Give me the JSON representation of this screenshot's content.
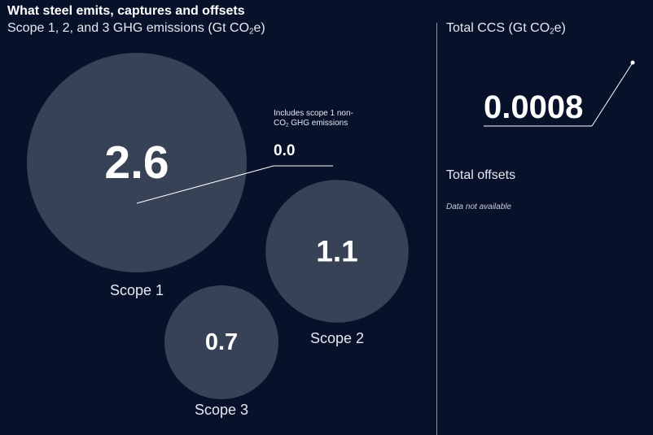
{
  "header": {
    "title": "What steel emits, captures and offsets",
    "subtitle_main": "Scope 1, 2, and 3 GHG emissions (Gt CO",
    "subtitle_sub": "2",
    "subtitle_tail": "e)"
  },
  "chart_data": {
    "type": "bubble",
    "title": "What steel emits, captures and offsets",
    "unit": "Gt CO2e",
    "categories": [
      "Scope 1",
      "Scope 2",
      "Scope 3"
    ],
    "values": [
      2.6,
      1.1,
      0.7
    ],
    "value_labels": [
      "2.6",
      "1.1",
      "0.7"
    ],
    "annotation": {
      "text_pre": "Includes scope 1 non-CO",
      "text_sub": "2",
      "text_post": " GHG emissions",
      "value": "0.0"
    }
  },
  "ccs": {
    "title_main": "Total CCS (Gt CO",
    "title_sub": "2",
    "title_tail": "e)",
    "value": "0.0008"
  },
  "offsets": {
    "title": "Total offsets",
    "note": "Data not available"
  },
  "colors": {
    "background": "#07112a",
    "bubble": "#374257",
    "text": "#ffffff"
  }
}
